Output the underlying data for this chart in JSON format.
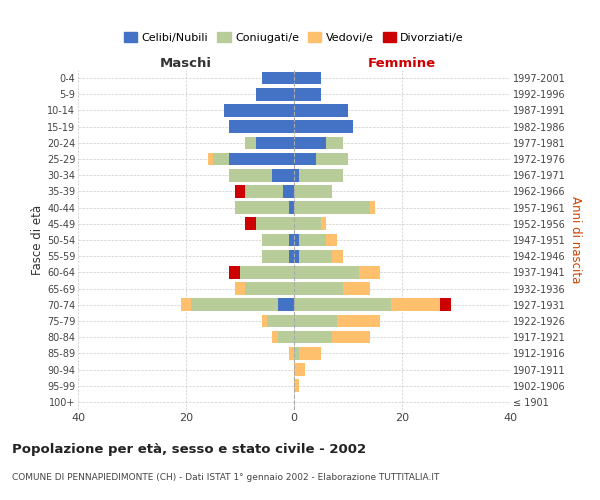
{
  "age_groups": [
    "100+",
    "95-99",
    "90-94",
    "85-89",
    "80-84",
    "75-79",
    "70-74",
    "65-69",
    "60-64",
    "55-59",
    "50-54",
    "45-49",
    "40-44",
    "35-39",
    "30-34",
    "25-29",
    "20-24",
    "15-19",
    "10-14",
    "5-9",
    "0-4"
  ],
  "birth_years": [
    "≤ 1901",
    "1902-1906",
    "1907-1911",
    "1912-1916",
    "1917-1921",
    "1922-1926",
    "1927-1931",
    "1932-1936",
    "1937-1941",
    "1942-1946",
    "1947-1951",
    "1952-1956",
    "1957-1961",
    "1962-1966",
    "1967-1971",
    "1972-1976",
    "1977-1981",
    "1982-1986",
    "1987-1991",
    "1992-1996",
    "1997-2001"
  ],
  "male": {
    "celibi": [
      0,
      0,
      0,
      0,
      0,
      0,
      3,
      0,
      0,
      1,
      1,
      0,
      1,
      2,
      4,
      12,
      7,
      12,
      13,
      7,
      6
    ],
    "coniugati": [
      0,
      0,
      0,
      0,
      3,
      5,
      16,
      9,
      10,
      5,
      5,
      7,
      10,
      7,
      8,
      3,
      2,
      0,
      0,
      0,
      0
    ],
    "vedovi": [
      0,
      0,
      0,
      1,
      1,
      1,
      2,
      2,
      0,
      0,
      0,
      0,
      0,
      0,
      0,
      1,
      0,
      0,
      0,
      0,
      0
    ],
    "divorziati": [
      0,
      0,
      0,
      0,
      0,
      0,
      0,
      0,
      2,
      0,
      0,
      2,
      0,
      2,
      0,
      0,
      0,
      0,
      0,
      0,
      0
    ]
  },
  "female": {
    "nubili": [
      0,
      0,
      0,
      0,
      0,
      0,
      0,
      0,
      0,
      1,
      1,
      0,
      0,
      0,
      1,
      4,
      6,
      11,
      10,
      5,
      5
    ],
    "coniugate": [
      0,
      0,
      0,
      1,
      7,
      8,
      18,
      9,
      12,
      6,
      5,
      5,
      14,
      7,
      8,
      6,
      3,
      0,
      0,
      0,
      0
    ],
    "vedove": [
      0,
      1,
      2,
      4,
      7,
      8,
      9,
      5,
      4,
      2,
      2,
      1,
      1,
      0,
      0,
      0,
      0,
      0,
      0,
      0,
      0
    ],
    "divorziate": [
      0,
      0,
      0,
      0,
      0,
      0,
      2,
      0,
      0,
      0,
      0,
      0,
      0,
      0,
      0,
      0,
      0,
      0,
      0,
      0,
      0
    ]
  },
  "colors": {
    "celibi_nubili": "#4472c4",
    "coniugati": "#b8cc99",
    "vedovi": "#ffc06e",
    "divorziati": "#cc0000"
  },
  "xlim": 40,
  "title": "Popolazione per età, sesso e stato civile - 2002",
  "subtitle": "COMUNE DI PENNAPIEDIMONTE (CH) - Dati ISTAT 1° gennaio 2002 - Elaborazione TUTTITALIA.IT",
  "ylabel_left": "Fasce di età",
  "ylabel_right": "Anni di nascita",
  "legend_labels": [
    "Celibi/Nubili",
    "Coniugati/e",
    "Vedovi/e",
    "Divorziati/e"
  ]
}
